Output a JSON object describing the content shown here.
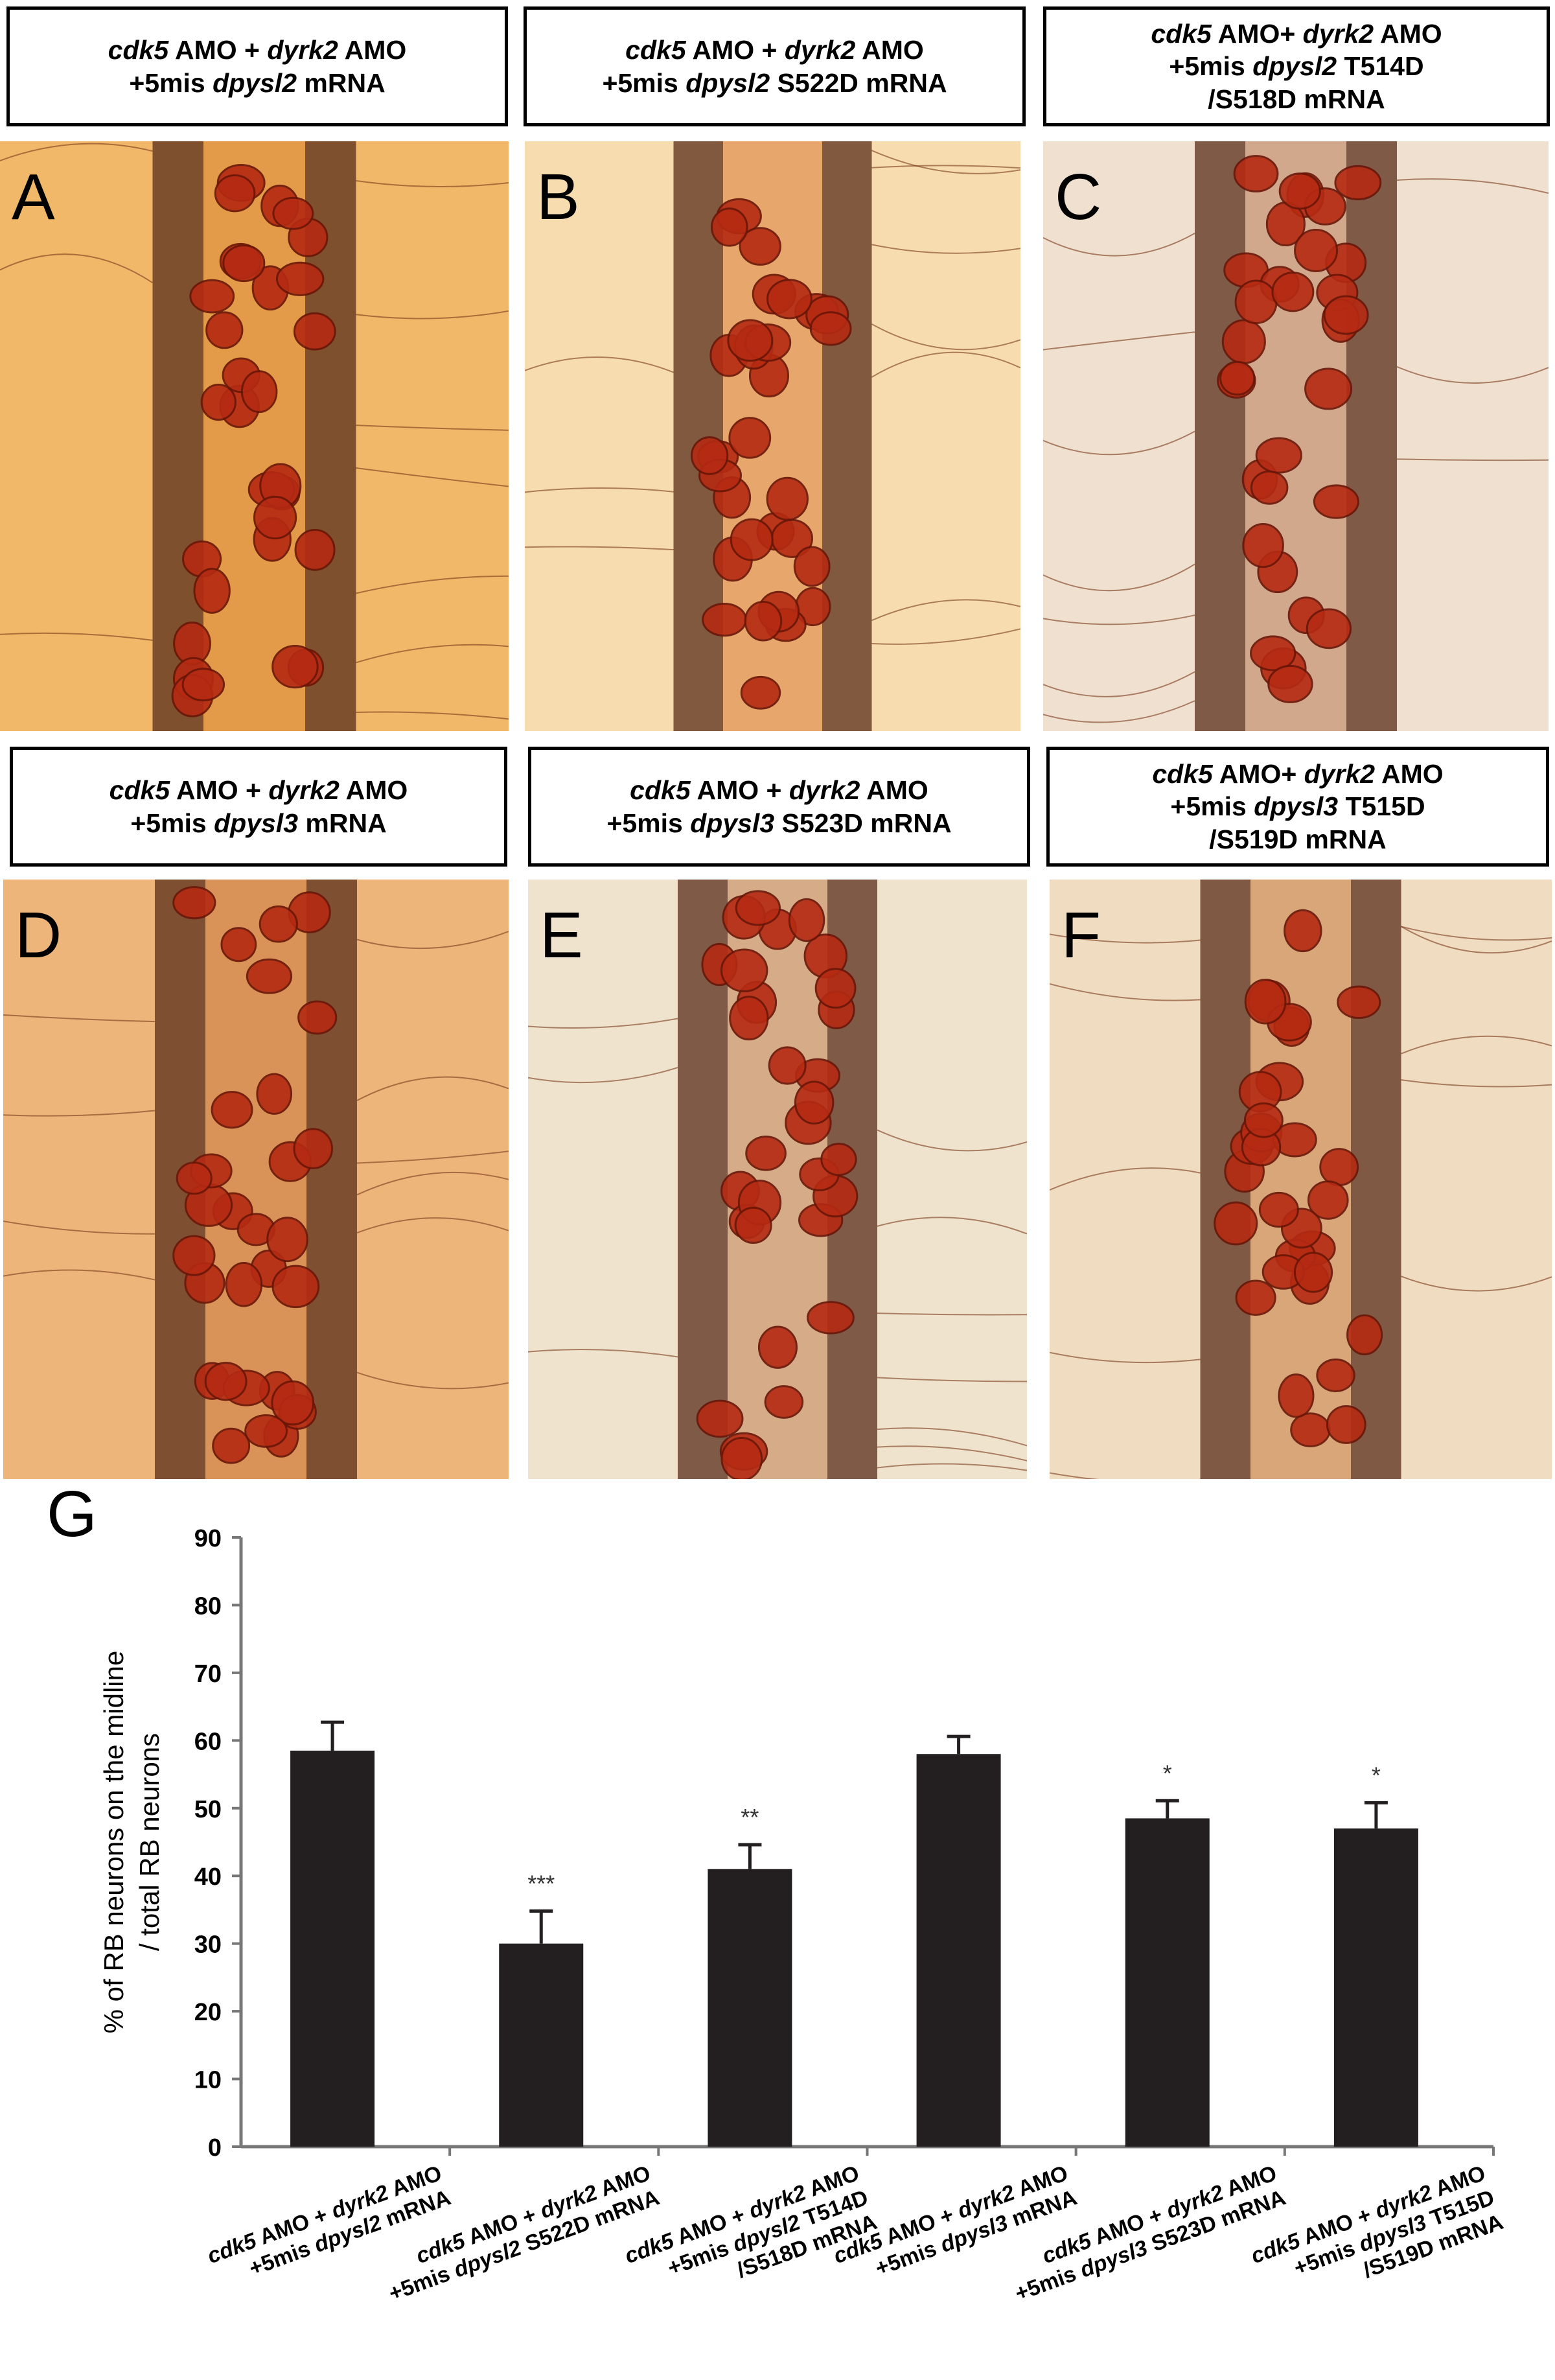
{
  "panels": [
    {
      "letter": "A",
      "label_lines": [
        [
          {
            "t": "cdk5",
            "i": true
          },
          {
            "t": " AMO + ",
            "i": false
          },
          {
            "t": "dyrk2",
            "i": true
          },
          {
            "t": " AMO",
            "i": false
          }
        ],
        [
          {
            "t": "+5mis ",
            "i": false
          },
          {
            "t": "dpysl2",
            "i": true
          },
          {
            "t": " mRNA",
            "i": false
          }
        ]
      ],
      "tone": "#d9822f",
      "bg": "#f0b868"
    },
    {
      "letter": "B",
      "label_lines": [
        [
          {
            "t": "cdk5",
            "i": true
          },
          {
            "t": " AMO + ",
            "i": false
          },
          {
            "t": "dyrk2",
            "i": true
          },
          {
            "t": " AMO",
            "i": false
          }
        ],
        [
          {
            "t": "+5mis ",
            "i": false
          },
          {
            "t": "dpysl2",
            "i": true
          },
          {
            "t": " S522D mRNA",
            "i": false
          }
        ]
      ],
      "tone": "#d97a35",
      "bg": "#f7dcaf"
    },
    {
      "letter": "C",
      "label_lines": [
        [
          {
            "t": "cdk5",
            "i": true
          },
          {
            "t": " AMO+ ",
            "i": false
          },
          {
            "t": "dyrk2",
            "i": true
          },
          {
            "t": " AMO",
            "i": false
          }
        ],
        [
          {
            "t": "+5mis ",
            "i": false
          },
          {
            "t": "dpysl2",
            "i": true
          },
          {
            "t": " T514D",
            "i": false
          }
        ],
        [
          {
            "t": "/S518D mRNA",
            "i": false
          }
        ]
      ],
      "tone": "#b87a55",
      "bg": "#efe0cf"
    },
    {
      "letter": "D",
      "label_lines": [
        [
          {
            "t": "cdk5",
            "i": true
          },
          {
            "t": " AMO + ",
            "i": false
          },
          {
            "t": "dyrk2",
            "i": true
          },
          {
            "t": " AMO",
            "i": false
          }
        ],
        [
          {
            "t": "+5mis ",
            "i": false
          },
          {
            "t": "dpysl3",
            "i": true
          },
          {
            "t": " mRNA",
            "i": false
          }
        ]
      ],
      "tone": "#c8743a",
      "bg": "#eeb57a"
    },
    {
      "letter": "E",
      "label_lines": [
        [
          {
            "t": "cdk5",
            "i": true
          },
          {
            "t": " AMO + ",
            "i": false
          },
          {
            "t": "dyrk2",
            "i": true
          },
          {
            "t": " AMO",
            "i": false
          }
        ],
        [
          {
            "t": "+5mis ",
            "i": false
          },
          {
            "t": "dpysl3",
            "i": true
          },
          {
            "t": " S523D mRNA",
            "i": false
          }
        ]
      ],
      "tone": "#c0804f",
      "bg": "#efe3cd"
    },
    {
      "letter": "F",
      "label_lines": [
        [
          {
            "t": "cdk5",
            "i": true
          },
          {
            "t": " AMO+ ",
            "i": false
          },
          {
            "t": "dyrk2",
            "i": true
          },
          {
            "t": " AMO",
            "i": false
          }
        ],
        [
          {
            "t": "+5mis ",
            "i": false
          },
          {
            "t": "dpysl3",
            "i": true
          },
          {
            "t": " T515D",
            "i": false
          }
        ],
        [
          {
            "t": "/S519D mRNA",
            "i": false
          }
        ]
      ],
      "tone": "#c77a40",
      "bg": "#f0dcc0"
    }
  ],
  "chart_data": {
    "type": "bar",
    "panel_letter": "G",
    "ylabel_lines": [
      "% of RB neurons on the midline",
      "/ total RB neurons"
    ],
    "ylim": [
      0,
      90
    ],
    "yticks": [
      0,
      10,
      20,
      30,
      40,
      50,
      60,
      70,
      80,
      90
    ],
    "grid": false,
    "bar_color": "#231f20",
    "categories": [
      [
        [
          {
            "t": "cdk5",
            "i": true
          },
          {
            "t": " AMO + ",
            "i": false
          },
          {
            "t": "dyrk2",
            "i": true
          },
          {
            "t": " AMO",
            "i": false
          }
        ],
        [
          {
            "t": "+5mis ",
            "i": false
          },
          {
            "t": "dpysl2",
            "i": true
          },
          {
            "t": " mRNA",
            "i": false
          }
        ]
      ],
      [
        [
          {
            "t": "cdk5",
            "i": true
          },
          {
            "t": " AMO + ",
            "i": false
          },
          {
            "t": "dyrk2",
            "i": true
          },
          {
            "t": " AMO",
            "i": false
          }
        ],
        [
          {
            "t": "+5mis ",
            "i": false
          },
          {
            "t": "dpysl2",
            "i": true
          },
          {
            "t": " S522D mRNA",
            "i": false
          }
        ]
      ],
      [
        [
          {
            "t": "cdk5",
            "i": true
          },
          {
            "t": " AMO + ",
            "i": false
          },
          {
            "t": "dyrk2",
            "i": true
          },
          {
            "t": " AMO",
            "i": false
          }
        ],
        [
          {
            "t": "+5mis ",
            "i": false
          },
          {
            "t": "dpysl2",
            "i": true
          },
          {
            "t": " T514D",
            "i": false
          }
        ],
        [
          {
            "t": "/S518D mRNA",
            "i": false
          }
        ]
      ],
      [
        [
          {
            "t": "cdk5",
            "i": true
          },
          {
            "t": " AMO + ",
            "i": false
          },
          {
            "t": "dyrk2",
            "i": true
          },
          {
            "t": " AMO",
            "i": false
          }
        ],
        [
          {
            "t": "+5mis ",
            "i": false
          },
          {
            "t": "dpysl3",
            "i": true
          },
          {
            "t": " mRNA",
            "i": false
          }
        ]
      ],
      [
        [
          {
            "t": "cdk5",
            "i": true
          },
          {
            "t": " AMO + ",
            "i": false
          },
          {
            "t": "dyrk2",
            "i": true
          },
          {
            "t": " AMO",
            "i": false
          }
        ],
        [
          {
            "t": "+5mis ",
            "i": false
          },
          {
            "t": "dpysl3",
            "i": true
          },
          {
            "t": " S523D mRNA",
            "i": false
          }
        ]
      ],
      [
        [
          {
            "t": "cdk5",
            "i": true
          },
          {
            "t": " AMO + ",
            "i": false
          },
          {
            "t": "dyrk2",
            "i": true
          },
          {
            "t": " AMO",
            "i": false
          }
        ],
        [
          {
            "t": "+5mis ",
            "i": false
          },
          {
            "t": "dpysl3",
            "i": true
          },
          {
            "t": " T515D",
            "i": false
          }
        ],
        [
          {
            "t": "/S519D mRNA",
            "i": false
          }
        ]
      ]
    ],
    "values": [
      58.5,
      30.0,
      41.0,
      58.0,
      48.5,
      47.0
    ],
    "errors": [
      4.2,
      4.8,
      3.6,
      2.6,
      2.6,
      3.8
    ],
    "significance": [
      "",
      "***",
      "**",
      "",
      "*",
      "*"
    ]
  }
}
